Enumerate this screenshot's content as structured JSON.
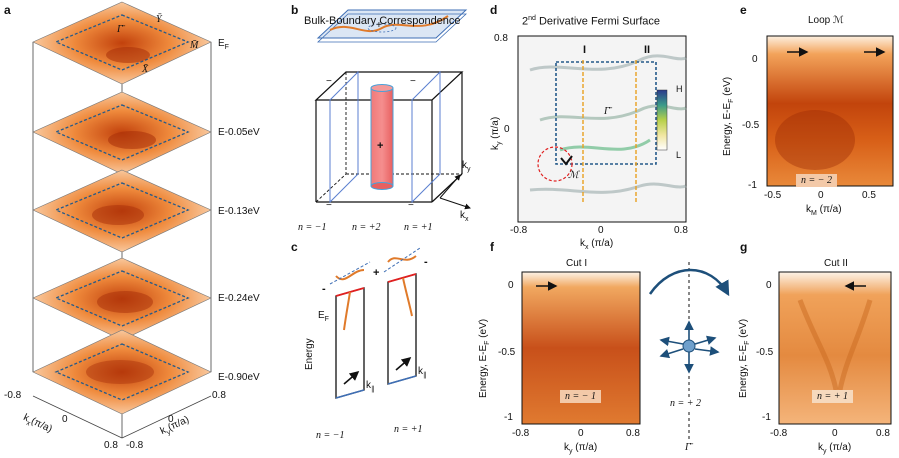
{
  "panels": {
    "a": "a",
    "b": "b",
    "c": "c",
    "d": "d",
    "e": "e",
    "f": "f",
    "g": "g"
  },
  "a": {
    "layers": [
      "E",
      "E-0.05eV",
      "E-0.13eV",
      "E-0.24eV",
      "E-0.90eV"
    ],
    "layer_sub": "F",
    "sym_gamma": "Γ̄",
    "sym_Y": "Ȳ",
    "sym_M": "M̄",
    "sym_X": "X̄",
    "xaxis": {
      "label": "k",
      "sub": "x",
      "unit": "(π/a)",
      "ticks": [
        "-0.8",
        "0",
        "0.8"
      ]
    },
    "yaxis": {
      "label": "k",
      "sub": "y",
      "unit": "(π/a)",
      "ticks": [
        "-0.8",
        "0",
        "0.8"
      ]
    }
  },
  "b": {
    "title": "Bulk-Boundary Correspondence",
    "ky": "k",
    "ky_sub": "y",
    "kx": "k",
    "kx_sub": "x",
    "n_labels": [
      "n = −1",
      "n = +2",
      "n = +1"
    ],
    "signs": {
      "plus": "+",
      "minus": "−"
    }
  },
  "c": {
    "energy_label": "Energy",
    "ef": "E",
    "ef_sub": "F",
    "kpar": "k",
    "kpar_sub": "∥",
    "n_labels": [
      "n = −1",
      "n = +1"
    ],
    "signs": {
      "plus": "+",
      "minus": "-"
    }
  },
  "d": {
    "title_pre": "2",
    "title_sup": "nd",
    "title_post": " Derivative Fermi Surface",
    "cut_labels": [
      "I",
      "II"
    ],
    "gamma": "Γ̄",
    "loop": "ℳ",
    "colorbar": {
      "high": "H",
      "low": "L"
    },
    "xaxis": {
      "label": "k",
      "sub": "x",
      "unit": " (π/a)",
      "ticks": [
        "-0.8",
        "0",
        "0.8"
      ],
      "range": [
        -0.8,
        0.8
      ]
    },
    "yaxis": {
      "label": "k",
      "sub": "y",
      "unit": " (π/a)",
      "ticks": [
        "0.8",
        "0"
      ]
    }
  },
  "e": {
    "title": "Loop ℳ",
    "n_label": "n = − 2",
    "xaxis": {
      "label": "k",
      "sub": "M",
      "unit": " (π/a)",
      "ticks": [
        "-0.5",
        "0",
        "0.5"
      ]
    },
    "yaxis": {
      "label": "Energy, E-E",
      "sub": "F",
      "unit": " (eV)",
      "ticks": [
        "0",
        "-0.5",
        "-1"
      ]
    }
  },
  "f": {
    "title": "Cut I",
    "n_label": "n = − 1",
    "xaxis": {
      "label": "k",
      "sub": "y",
      "unit": " (π/a)",
      "ticks": [
        "-0.8",
        "0",
        "0.8"
      ]
    },
    "yaxis": {
      "label": "Energy, E-E",
      "sub": "F",
      "unit": " (eV)",
      "ticks": [
        "0",
        "-0.5",
        "-1"
      ]
    }
  },
  "middle": {
    "n_label": "n = + 2",
    "gamma": "Γ̄"
  },
  "g": {
    "title": "Cut II",
    "n_label": "n = + 1",
    "xaxis": {
      "label": "k",
      "sub": "y",
      "unit": " (π/a)",
      "ticks": [
        "-0.8",
        "0",
        "0.8"
      ]
    },
    "yaxis": {
      "label": "Energy, E-E",
      "sub": "F",
      "unit": " (eV)",
      "ticks": [
        "0",
        "-0.5",
        "-1"
      ]
    }
  },
  "colors": {
    "orange": "#e0701c",
    "dark_orange": "#b33a08",
    "blue_dash": "#2a5a8a",
    "red": "#e02020",
    "pink": "#f06a6a"
  }
}
